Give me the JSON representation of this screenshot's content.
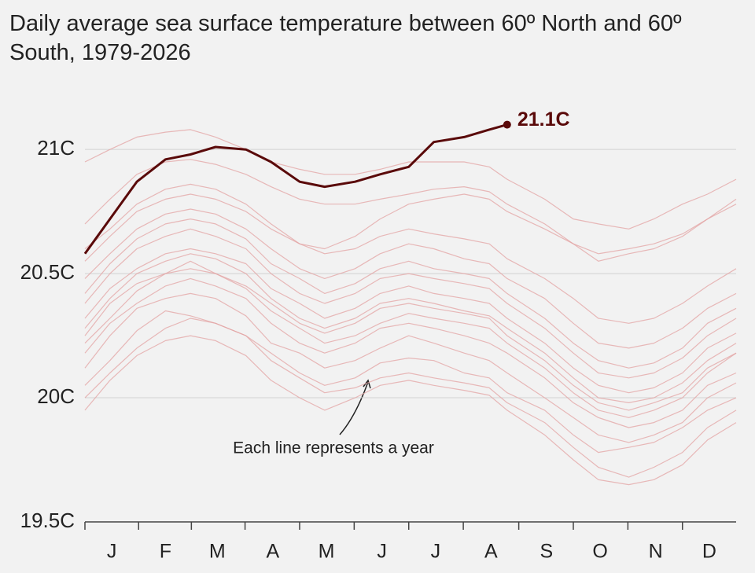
{
  "chart_data": {
    "type": "line",
    "title": "Daily average sea surface temperature between 60º North and 60º South, 1979-2026",
    "annotation": "Each line represents a year",
    "x": [
      1,
      15,
      30,
      46,
      60,
      74,
      91,
      105,
      121,
      135,
      152,
      166,
      182,
      196,
      213,
      227,
      237,
      258,
      274,
      288,
      305,
      319,
      335,
      349,
      365
    ],
    "xlim": [
      1,
      365
    ],
    "xticks": [
      {
        "value": 16,
        "label": "J"
      },
      {
        "value": 46,
        "label": "F"
      },
      {
        "value": 75,
        "label": "M"
      },
      {
        "value": 106,
        "label": "A"
      },
      {
        "value": 136,
        "label": "M"
      },
      {
        "value": 167,
        "label": "J"
      },
      {
        "value": 197,
        "label": "J"
      },
      {
        "value": 228,
        "label": "A"
      },
      {
        "value": 259,
        "label": "S"
      },
      {
        "value": 289,
        "label": "O"
      },
      {
        "value": 320,
        "label": "N"
      },
      {
        "value": 350,
        "label": "D"
      }
    ],
    "ylim": [
      19.5,
      21.2
    ],
    "yticks": [
      {
        "value": 19.5,
        "label": "19.5C"
      },
      {
        "value": 20,
        "label": "20C"
      },
      {
        "value": 20.5,
        "label": "20.5C"
      },
      {
        "value": 21,
        "label": "21C"
      }
    ],
    "grid": true,
    "series": [
      {
        "color": "#e3a3a3",
        "values": [
          19.95,
          20.07,
          20.17,
          20.23,
          20.25,
          20.23,
          20.17,
          20.07,
          20.0,
          19.95,
          20.0,
          20.05,
          20.07,
          20.05,
          20.03,
          20.01,
          19.95,
          19.85,
          19.75,
          19.67,
          19.65,
          19.67,
          19.73,
          19.83,
          19.9
        ]
      },
      {
        "color": "#e3a3a3",
        "values": [
          20.05,
          20.15,
          20.27,
          20.35,
          20.33,
          20.3,
          20.25,
          20.18,
          20.1,
          20.05,
          20.08,
          20.14,
          20.16,
          20.15,
          20.1,
          20.08,
          20.02,
          19.95,
          19.85,
          19.78,
          19.8,
          19.82,
          19.88,
          19.95,
          20.0
        ]
      },
      {
        "color": "#e3a3a3",
        "values": [
          20.12,
          20.25,
          20.36,
          20.4,
          20.42,
          20.4,
          20.33,
          20.22,
          20.18,
          20.12,
          20.15,
          20.2,
          20.25,
          20.22,
          20.18,
          20.15,
          20.1,
          20.0,
          19.92,
          19.85,
          19.82,
          19.85,
          19.9,
          20.0,
          20.06
        ]
      },
      {
        "color": "#e3a3a3",
        "values": [
          20.18,
          20.3,
          20.38,
          20.45,
          20.48,
          20.45,
          20.4,
          20.3,
          20.22,
          20.18,
          20.22,
          20.28,
          20.3,
          20.28,
          20.25,
          20.22,
          20.18,
          20.08,
          19.98,
          19.92,
          19.88,
          19.9,
          19.95,
          20.05,
          20.1
        ]
      },
      {
        "color": "#e3a3a3",
        "values": [
          20.22,
          20.32,
          20.43,
          20.5,
          20.52,
          20.5,
          20.44,
          20.35,
          20.28,
          20.22,
          20.25,
          20.3,
          20.34,
          20.32,
          20.3,
          20.28,
          20.22,
          20.12,
          20.02,
          19.95,
          19.92,
          19.95,
          20.0,
          20.1,
          20.18
        ]
      },
      {
        "color": "#e3a3a3",
        "values": [
          20.28,
          20.4,
          20.5,
          20.55,
          20.58,
          20.56,
          20.5,
          20.4,
          20.32,
          20.28,
          20.32,
          20.38,
          20.4,
          20.38,
          20.35,
          20.33,
          20.28,
          20.18,
          20.08,
          20.0,
          19.98,
          20.0,
          20.06,
          20.15,
          20.22
        ]
      },
      {
        "color": "#e3a3a3",
        "values": [
          20.32,
          20.44,
          20.52,
          20.58,
          20.6,
          20.58,
          20.54,
          20.44,
          20.38,
          20.32,
          20.36,
          20.42,
          20.45,
          20.42,
          20.4,
          20.38,
          20.32,
          20.22,
          20.12,
          20.05,
          20.02,
          20.04,
          20.1,
          20.2,
          20.26
        ]
      },
      {
        "color": "#e3a3a3",
        "values": [
          20.38,
          20.5,
          20.6,
          20.65,
          20.68,
          20.65,
          20.6,
          20.5,
          20.42,
          20.38,
          20.42,
          20.48,
          20.5,
          20.48,
          20.46,
          20.44,
          20.38,
          20.28,
          20.18,
          20.1,
          20.08,
          20.1,
          20.16,
          20.25,
          20.32
        ]
      },
      {
        "color": "#e3a3a3",
        "values": [
          20.42,
          20.54,
          20.64,
          20.7,
          20.72,
          20.7,
          20.64,
          20.54,
          20.48,
          20.42,
          20.46,
          20.52,
          20.55,
          20.52,
          20.5,
          20.48,
          20.42,
          20.32,
          20.22,
          20.15,
          20.12,
          20.14,
          20.2,
          20.3,
          20.36
        ]
      },
      {
        "color": "#e3a3a3",
        "values": [
          20.48,
          20.58,
          20.68,
          20.74,
          20.76,
          20.74,
          20.68,
          20.6,
          20.52,
          20.48,
          20.52,
          20.58,
          20.62,
          20.6,
          20.56,
          20.54,
          20.48,
          20.4,
          20.3,
          20.22,
          20.2,
          20.22,
          20.28,
          20.36,
          20.42
        ]
      },
      {
        "color": "#e3a3a3",
        "values": [
          20.55,
          20.65,
          20.75,
          20.8,
          20.82,
          20.8,
          20.75,
          20.68,
          20.62,
          20.6,
          20.65,
          20.72,
          20.78,
          20.8,
          20.82,
          20.8,
          20.75,
          20.68,
          20.62,
          20.55,
          20.58,
          20.6,
          20.65,
          20.72,
          20.8
        ]
      },
      {
        "color": "#e3a3a3",
        "values": [
          20.95,
          21.0,
          21.05,
          21.07,
          21.08,
          21.05,
          21.0,
          20.95,
          20.92,
          20.9,
          20.9,
          20.92,
          20.95,
          20.95,
          20.95,
          20.93,
          20.88,
          20.8,
          20.72,
          20.7,
          20.68,
          20.72,
          20.78,
          20.82,
          20.88
        ]
      },
      {
        "color": "#e3a3a3",
        "values": [
          20.7,
          20.8,
          20.9,
          20.95,
          20.96,
          20.94,
          20.9,
          20.85,
          20.8,
          20.78,
          20.78,
          20.8,
          20.82,
          20.84,
          20.85,
          20.83,
          20.78,
          20.7,
          20.62,
          20.58,
          20.6,
          20.62,
          20.66,
          20.72,
          20.78
        ]
      },
      {
        "color": "#e3a3a3",
        "values": [
          20.6,
          20.68,
          20.78,
          20.84,
          20.86,
          20.84,
          20.78,
          20.7,
          20.62,
          20.58,
          20.6,
          20.65,
          20.68,
          20.66,
          20.64,
          20.62,
          20.56,
          20.48,
          20.4,
          20.32,
          20.3,
          20.32,
          20.38,
          20.45,
          20.52
        ]
      },
      {
        "color": "#e3a3a3",
        "values": [
          20.0,
          20.1,
          20.2,
          20.28,
          20.32,
          20.3,
          20.25,
          20.15,
          20.08,
          20.02,
          20.04,
          20.08,
          20.1,
          20.08,
          20.06,
          20.04,
          19.98,
          19.9,
          19.8,
          19.72,
          19.68,
          19.72,
          19.78,
          19.88,
          19.95
        ]
      },
      {
        "color": "#e3a3a3",
        "values": [
          20.25,
          20.38,
          20.46,
          20.5,
          20.55,
          20.5,
          20.45,
          20.38,
          20.3,
          20.26,
          20.3,
          20.36,
          20.38,
          20.36,
          20.34,
          20.32,
          20.25,
          20.15,
          20.05,
          19.98,
          19.95,
          19.98,
          20.02,
          20.12,
          20.18
        ]
      },
      {
        "color": "#5a0a0a",
        "values": [
          20.58,
          20.72,
          20.87,
          20.96,
          20.98,
          21.01,
          21.0,
          20.95,
          20.87,
          20.85,
          20.87,
          20.9,
          20.93,
          21.03,
          21.05,
          21.08,
          21.1,
          null,
          null,
          null,
          null,
          null,
          null,
          null,
          null
        ],
        "value_labels": [
          null,
          null,
          null,
          null,
          null,
          null,
          null,
          null,
          null,
          null,
          null,
          null,
          null,
          null,
          null,
          null,
          "21.1C",
          null,
          null,
          null,
          null,
          null,
          null,
          null,
          null
        ]
      }
    ]
  }
}
